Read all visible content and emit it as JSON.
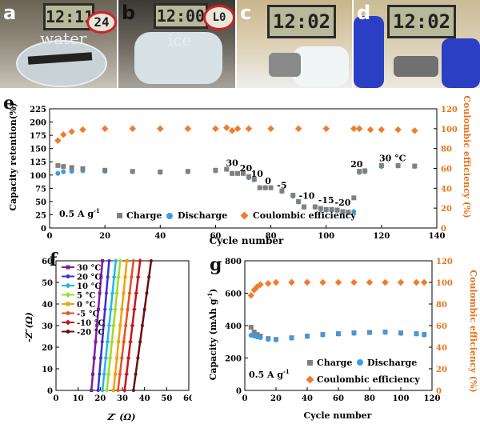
{
  "photos": [
    {
      "label": "a",
      "display": "12:11",
      "inset": "24",
      "caption": "water"
    },
    {
      "label": "b",
      "display": "12:00",
      "inset": "L0",
      "caption": "ice"
    },
    {
      "label": "c",
      "display": "12:02"
    },
    {
      "label": "d",
      "display": "12:02"
    }
  ],
  "panel_labels": {
    "e": "e",
    "f": "f",
    "g": "g"
  },
  "chart_e": {
    "ylabel": "Capacity retention(%)",
    "y2label": "Coulombic efficiency (%)",
    "xlabel": "Cycle number",
    "rate": "0.5 A g",
    "rate_sup": "-1",
    "legend": [
      "Charge",
      "Discharge",
      "Coulombic efficiency"
    ],
    "temps": [
      "30",
      "20",
      "10",
      "0",
      "-5",
      "-10",
      "-15",
      "-20",
      "20",
      "30 °C"
    ],
    "xticks": [
      "0",
      "20",
      "40",
      "60",
      "80",
      "100",
      "120",
      "140"
    ],
    "yticks": [
      "0",
      "25",
      "50",
      "75",
      "100",
      "125",
      "150",
      "175",
      "200",
      "225"
    ],
    "y2ticks": [
      "0",
      "20",
      "40",
      "60",
      "80",
      "100",
      "120"
    ]
  },
  "chart_f": {
    "ylabel": "-Z″(Ω)",
    "xlabel": "Z′ (Ω)",
    "ticks": [
      "0",
      "10",
      "20",
      "30",
      "40",
      "50",
      "60"
    ],
    "legend": [
      "30 °C",
      "20 °C",
      "10 °C",
      "5 °C",
      "0 °C",
      "-5 °C",
      "-10 °C",
      "-20 °C"
    ]
  },
  "chart_g": {
    "ylabel": "Capacity (mAh g",
    "ylabel_sup": "-1",
    "y2label": "Coulombic efficiency (%)",
    "xlabel": "Cycle number",
    "rate": "0.5 A g",
    "rate_sup": "-1",
    "legend": [
      "Charge",
      "Discharge",
      "Coulombic efficiency"
    ],
    "xticks": [
      "0",
      "20",
      "40",
      "60",
      "80",
      "100",
      "120"
    ],
    "yticks": [
      "0",
      "200",
      "400",
      "600",
      "800"
    ],
    "y2ticks": [
      "0",
      "20",
      "40",
      "60",
      "80",
      "100",
      "120"
    ]
  },
  "colors": {
    "charge": "#808080",
    "discharge": "#3f9be0",
    "ce": "#ee7d2e",
    "axis_right": "#e6731b"
  },
  "chart_data": [
    {
      "type": "scatter",
      "title": "",
      "xlabel": "Cycle number",
      "ylabel": "Capacity retention(%)",
      "y2label": "Coulombic efficiency (%)",
      "xlim": [
        0,
        140
      ],
      "ylim": [
        0,
        225
      ],
      "y2lim": [
        0,
        120
      ],
      "series": [
        {
          "name": "Charge",
          "x": [
            3,
            5,
            8,
            12,
            20,
            30,
            40,
            50,
            60,
            64,
            66,
            68,
            70,
            72,
            74,
            76,
            78,
            80,
            84,
            88,
            90,
            92,
            96,
            98,
            100,
            102,
            104,
            106,
            108,
            110,
            112,
            114,
            120,
            126,
            132
          ],
          "y": [
            118,
            116,
            114,
            112,
            109,
            107,
            106,
            107,
            109,
            111,
            103,
            103,
            103,
            97,
            92,
            76,
            76,
            76,
            70,
            62,
            50,
            40,
            40,
            37,
            35,
            35,
            34,
            31,
            30,
            57,
            107,
            108,
            118,
            118,
            117
          ]
        },
        {
          "name": "Discharge",
          "x": [
            3,
            5,
            8,
            12,
            20,
            30,
            40,
            50,
            60,
            64,
            66,
            68,
            70,
            72,
            74,
            76,
            78,
            80,
            84,
            88,
            90,
            92,
            96,
            98,
            100,
            102,
            104,
            106,
            108,
            110,
            112,
            114,
            120,
            126,
            132
          ],
          "y": [
            103,
            106,
            107,
            108,
            107,
            106,
            105,
            106,
            108,
            111,
            103,
            103,
            103,
            95,
            91,
            76,
            76,
            76,
            69,
            60,
            49,
            39,
            39,
            36,
            34,
            34,
            33,
            30,
            29,
            31,
            105,
            106,
            116,
            117,
            116
          ]
        },
        {
          "name": "Coulombic efficiency",
          "x": [
            3,
            5,
            8,
            12,
            20,
            30,
            40,
            50,
            60,
            64,
            66,
            68,
            72,
            80,
            90,
            100,
            110,
            112,
            116,
            120,
            126,
            132
          ],
          "y": [
            88,
            94,
            97,
            99,
            100,
            100,
            100,
            100,
            100,
            101,
            98,
            100,
            100,
            100,
            100,
            100,
            100,
            100,
            99,
            99,
            99,
            98
          ]
        }
      ]
    },
    {
      "type": "line",
      "title": "",
      "xlabel": "Z′ (Ω)",
      "ylabel": "-Z″(Ω)",
      "xlim": [
        0,
        60
      ],
      "ylim": [
        0,
        60
      ],
      "series": [
        {
          "name": "30 °C",
          "x": [
            16,
            21
          ],
          "y": [
            0,
            60
          ]
        },
        {
          "name": "20 °C",
          "x": [
            19,
            24
          ],
          "y": [
            0,
            60
          ]
        },
        {
          "name": "10 °C",
          "x": [
            21,
            27
          ],
          "y": [
            0,
            60
          ]
        },
        {
          "name": "5 °C",
          "x": [
            23,
            29
          ],
          "y": [
            0,
            60
          ]
        },
        {
          "name": "0 °C",
          "x": [
            26,
            32
          ],
          "y": [
            0,
            60
          ]
        },
        {
          "name": "-5 °C",
          "x": [
            28,
            35
          ],
          "y": [
            0,
            60
          ]
        },
        {
          "name": "-10 °C",
          "x": [
            31,
            38
          ],
          "y": [
            0,
            60
          ]
        },
        {
          "name": "-20 °C",
          "x": [
            35,
            43
          ],
          "y": [
            0,
            60
          ]
        }
      ]
    },
    {
      "type": "scatter",
      "title": "",
      "xlabel": "Cycle number",
      "ylabel": "Capacity (mAh g-1)",
      "y2label": "Coulombic efficiency (%)",
      "xlim": [
        0,
        120
      ],
      "ylim": [
        0,
        800
      ],
      "y2lim": [
        0,
        120
      ],
      "series": [
        {
          "name": "Charge",
          "x": [
            4,
            6,
            8,
            10,
            15,
            20,
            30,
            40,
            50,
            60,
            70,
            80,
            90,
            100,
            110,
            115
          ],
          "y": [
            390,
            360,
            345,
            335,
            320,
            315,
            325,
            335,
            345,
            350,
            355,
            358,
            360,
            355,
            350,
            345
          ]
        },
        {
          "name": "Discharge",
          "x": [
            4,
            6,
            8,
            10,
            15,
            20,
            30,
            40,
            50,
            60,
            70,
            80,
            90,
            100,
            110,
            115
          ],
          "y": [
            340,
            335,
            330,
            325,
            315,
            312,
            322,
            332,
            342,
            348,
            352,
            356,
            358,
            352,
            348,
            342
          ]
        },
        {
          "name": "Coulombic efficiency",
          "x": [
            4,
            6,
            8,
            10,
            15,
            20,
            30,
            40,
            50,
            60,
            70,
            80,
            90,
            100,
            110,
            115
          ],
          "y": [
            88,
            93,
            96,
            98,
            99,
            100,
            100,
            100,
            100,
            100,
            100,
            100,
            100,
            100,
            100,
            100
          ]
        }
      ]
    }
  ]
}
